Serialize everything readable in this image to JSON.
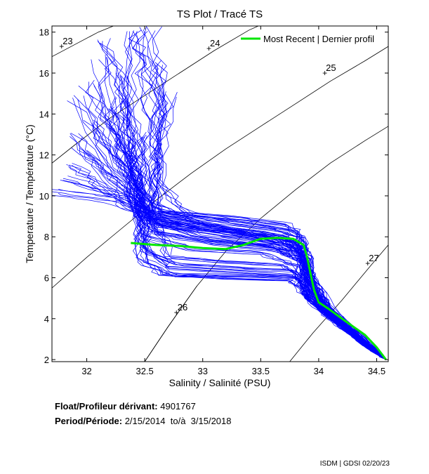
{
  "chart_data": {
    "type": "scatter",
    "title": "TS Plot / Tracé TS",
    "xlabel": "Salinity / Salinité (PSU)",
    "ylabel": "Temperature / Température (°C)",
    "xlim": [
      31.7,
      34.6
    ],
    "ylim": [
      1.9,
      18.3
    ],
    "xticks": [
      32,
      32.5,
      33,
      33.5,
      34,
      34.5
    ],
    "yticks": [
      2,
      4,
      6,
      8,
      10,
      12,
      14,
      16,
      18
    ],
    "grid": false,
    "legend": {
      "position": "top-right",
      "entries": [
        "Most Recent | Dernier profil"
      ]
    },
    "density_contours": [
      {
        "label": "23",
        "label_at": [
          31.78,
          17.3
        ],
        "points": [
          [
            31.7,
            16.8
          ],
          [
            31.9,
            17.4
          ],
          [
            32.1,
            18.0
          ],
          [
            32.23,
            18.3
          ]
        ]
      },
      {
        "label": "24",
        "label_at": [
          33.05,
          17.2
        ],
        "points": [
          [
            31.7,
            11.6
          ],
          [
            31.9,
            12.5
          ],
          [
            32.2,
            13.8
          ],
          [
            32.5,
            14.9
          ],
          [
            32.8,
            16.0
          ],
          [
            33.1,
            17.1
          ],
          [
            33.4,
            18.1
          ],
          [
            33.48,
            18.3
          ]
        ]
      },
      {
        "label": "25",
        "label_at": [
          34.05,
          16.0
        ],
        "points": [
          [
            31.7,
            5.5
          ],
          [
            32.0,
            7.0
          ],
          [
            32.3,
            8.4
          ],
          [
            32.6,
            9.8
          ],
          [
            32.9,
            11.1
          ],
          [
            33.2,
            12.3
          ],
          [
            33.5,
            13.4
          ],
          [
            33.8,
            14.5
          ],
          [
            34.1,
            15.6
          ],
          [
            34.4,
            16.6
          ],
          [
            34.6,
            17.3
          ]
        ]
      },
      {
        "label": "",
        "label_at": null,
        "points": [
          [
            32.5,
            1.9
          ],
          [
            32.7,
            3.6
          ],
          [
            32.95,
            5.6
          ],
          [
            33.2,
            7.3
          ],
          [
            33.5,
            8.9
          ],
          [
            33.8,
            10.3
          ],
          [
            34.1,
            11.6
          ],
          [
            34.4,
            12.7
          ],
          [
            34.6,
            13.4
          ]
        ]
      },
      {
        "label": "26",
        "label_at": [
          32.77,
          4.3
        ],
        "points": [
          [
            32.5,
            1.9
          ],
          [
            32.7,
            3.6
          ],
          [
            32.95,
            5.6
          ]
        ]
      },
      {
        "label": "27",
        "label_at": [
          34.42,
          6.7
        ],
        "points": [
          [
            33.75,
            1.9
          ],
          [
            33.95,
            3.3
          ],
          [
            34.2,
            4.9
          ],
          [
            34.45,
            6.6
          ],
          [
            34.6,
            7.6
          ]
        ]
      }
    ],
    "series": [
      {
        "name": "",
        "color": "#0000ff",
        "role": "historical",
        "profiles": [
          [
            [
              32.42,
              17.9
            ],
            [
              32.35,
              14.5
            ],
            [
              32.4,
              11.0
            ],
            [
              32.5,
              8.9
            ],
            [
              33.0,
              8.3
            ],
            [
              33.5,
              8.0
            ],
            [
              33.85,
              7.6
            ],
            [
              33.9,
              6.2
            ],
            [
              34.0,
              4.6
            ],
            [
              34.2,
              3.5
            ],
            [
              34.58,
              2.0
            ]
          ],
          [
            [
              32.1,
              16.8
            ],
            [
              32.2,
              13.5
            ],
            [
              32.35,
              10.6
            ],
            [
              32.55,
              9.0
            ],
            [
              33.2,
              8.5
            ],
            [
              33.7,
              8.1
            ],
            [
              33.9,
              7.0
            ],
            [
              33.95,
              5.5
            ],
            [
              34.1,
              4.2
            ],
            [
              34.3,
              3.1
            ],
            [
              34.58,
              2.0
            ]
          ],
          [
            [
              31.9,
              13.0
            ],
            [
              32.15,
              11.0
            ],
            [
              32.4,
              9.6
            ],
            [
              32.7,
              8.7
            ],
            [
              33.4,
              8.0
            ],
            [
              33.8,
              7.5
            ],
            [
              33.9,
              6.0
            ],
            [
              34.0,
              4.8
            ],
            [
              34.25,
              3.4
            ],
            [
              34.58,
              2.0
            ]
          ],
          [
            [
              31.95,
              12.2
            ],
            [
              32.3,
              10.5
            ],
            [
              32.55,
              9.2
            ],
            [
              33.0,
              8.6
            ],
            [
              33.6,
              7.9
            ],
            [
              33.85,
              7.2
            ],
            [
              33.92,
              5.6
            ],
            [
              34.05,
              4.4
            ],
            [
              34.35,
              3.0
            ],
            [
              34.58,
              2.0
            ]
          ],
          [
            [
              31.7,
              10.2
            ],
            [
              32.2,
              9.8
            ],
            [
              32.5,
              9.0
            ],
            [
              33.0,
              8.4
            ],
            [
              33.5,
              8.0
            ],
            [
              33.88,
              7.4
            ],
            [
              33.95,
              5.8
            ],
            [
              34.1,
              4.4
            ],
            [
              34.58,
              2.0
            ]
          ],
          [
            [
              31.8,
              10.8
            ],
            [
              32.3,
              10.0
            ],
            [
              32.6,
              8.6
            ],
            [
              33.1,
              8.1
            ],
            [
              33.6,
              7.7
            ],
            [
              33.85,
              7.0
            ],
            [
              33.9,
              5.2
            ],
            [
              34.1,
              4.0
            ],
            [
              34.4,
              2.7
            ],
            [
              34.58,
              2.0
            ]
          ],
          [
            [
              32.55,
              18.2
            ],
            [
              32.6,
              15.0
            ],
            [
              32.55,
              12.0
            ],
            [
              32.6,
              9.5
            ],
            [
              33.0,
              8.6
            ],
            [
              33.5,
              8.2
            ],
            [
              33.8,
              7.8
            ],
            [
              33.9,
              6.4
            ],
            [
              34.0,
              4.9
            ],
            [
              34.3,
              3.3
            ],
            [
              34.58,
              2.0
            ]
          ],
          [
            [
              32.3,
              16.0
            ],
            [
              32.45,
              13.0
            ],
            [
              32.5,
              10.5
            ],
            [
              32.55,
              8.4
            ],
            [
              33.0,
              7.9
            ],
            [
              33.6,
              7.6
            ],
            [
              33.85,
              6.8
            ],
            [
              33.92,
              5.0
            ],
            [
              34.15,
              3.9
            ],
            [
              34.58,
              2.0
            ]
          ],
          [
            [
              32.0,
              15.5
            ],
            [
              32.25,
              12.5
            ],
            [
              32.45,
              10.0
            ],
            [
              32.5,
              8.0
            ],
            [
              32.9,
              7.4
            ],
            [
              33.5,
              7.2
            ],
            [
              33.8,
              6.6
            ],
            [
              33.9,
              5.0
            ],
            [
              34.2,
              3.7
            ],
            [
              34.58,
              2.0
            ]
          ],
          [
            [
              32.7,
              15.0
            ],
            [
              32.6,
              12.0
            ],
            [
              32.55,
              9.8
            ],
            [
              32.5,
              7.5
            ],
            [
              32.7,
              6.5
            ],
            [
              33.3,
              6.3
            ],
            [
              33.8,
              6.1
            ],
            [
              33.9,
              5.0
            ],
            [
              34.1,
              4.0
            ],
            [
              34.58,
              2.0
            ]
          ],
          [
            [
              32.5,
              13.0
            ],
            [
              32.45,
              11.0
            ],
            [
              32.45,
              9.0
            ],
            [
              32.45,
              7.0
            ],
            [
              32.65,
              6.2
            ],
            [
              33.2,
              6.0
            ],
            [
              33.75,
              5.9
            ],
            [
              33.88,
              5.2
            ],
            [
              34.05,
              4.2
            ],
            [
              34.58,
              2.0
            ]
          ],
          [
            [
              32.2,
              14.2
            ],
            [
              32.35,
              11.8
            ],
            [
              32.45,
              9.4
            ],
            [
              32.5,
              7.2
            ],
            [
              32.8,
              6.6
            ],
            [
              33.4,
              6.4
            ],
            [
              33.8,
              6.3
            ],
            [
              33.9,
              5.3
            ],
            [
              34.1,
              4.1
            ],
            [
              34.4,
              2.8
            ],
            [
              34.58,
              2.0
            ]
          ],
          [
            [
              31.9,
              14.8
            ],
            [
              32.2,
              12.0
            ],
            [
              32.4,
              9.8
            ],
            [
              32.6,
              8.6
            ],
            [
              33.2,
              8.3
            ],
            [
              33.7,
              7.9
            ],
            [
              33.88,
              7.0
            ],
            [
              33.93,
              5.6
            ],
            [
              34.1,
              4.3
            ],
            [
              34.58,
              2.0
            ]
          ],
          [
            [
              32.45,
              18.1
            ],
            [
              32.5,
              16.0
            ],
            [
              32.6,
              13.0
            ],
            [
              32.65,
              10.4
            ],
            [
              32.9,
              9.1
            ],
            [
              33.4,
              8.7
            ],
            [
              33.8,
              8.3
            ],
            [
              33.9,
              7.2
            ],
            [
              33.95,
              5.8
            ],
            [
              34.1,
              4.5
            ],
            [
              34.58,
              2.0
            ]
          ],
          [
            [
              32.15,
              17.6
            ],
            [
              32.3,
              15.5
            ],
            [
              32.35,
              13.2
            ],
            [
              32.45,
              11.0
            ],
            [
              32.55,
              9.3
            ],
            [
              33.1,
              8.8
            ],
            [
              33.6,
              8.4
            ],
            [
              33.85,
              8.0
            ],
            [
              33.95,
              6.2
            ],
            [
              34.1,
              4.6
            ],
            [
              34.58,
              2.0
            ]
          ],
          [
            [
              32.25,
              14.8
            ],
            [
              32.35,
              12.2
            ],
            [
              32.45,
              10.2
            ],
            [
              32.55,
              8.8
            ],
            [
              33.0,
              8.0
            ],
            [
              33.5,
              7.6
            ],
            [
              33.82,
              7.3
            ],
            [
              33.9,
              5.8
            ],
            [
              34.05,
              4.5
            ],
            [
              34.58,
              2.0
            ]
          ],
          [
            [
              31.85,
              11.6
            ],
            [
              32.1,
              10.6
            ],
            [
              32.4,
              9.4
            ],
            [
              32.6,
              8.2
            ],
            [
              33.1,
              7.7
            ],
            [
              33.6,
              7.4
            ],
            [
              33.85,
              6.9
            ],
            [
              33.92,
              5.3
            ],
            [
              34.1,
              4.2
            ],
            [
              34.58,
              2.0
            ]
          ],
          [
            [
              32.6,
              16.5
            ],
            [
              32.65,
              14.0
            ],
            [
              32.6,
              11.4
            ],
            [
              32.58,
              9.0
            ],
            [
              32.7,
              7.0
            ],
            [
              33.1,
              6.8
            ],
            [
              33.7,
              6.6
            ],
            [
              33.88,
              5.7
            ],
            [
              34.05,
              4.4
            ],
            [
              34.58,
              2.0
            ]
          ],
          [
            [
              32.35,
              12.6
            ],
            [
              32.4,
              10.8
            ],
            [
              32.45,
              8.6
            ],
            [
              32.5,
              6.8
            ],
            [
              32.75,
              6.1
            ],
            [
              33.3,
              6.1
            ],
            [
              33.8,
              6.0
            ],
            [
              33.9,
              5.1
            ],
            [
              34.1,
              4.0
            ],
            [
              34.58,
              2.0
            ]
          ],
          [
            [
              32.05,
              13.6
            ],
            [
              32.3,
              11.4
            ],
            [
              32.5,
              9.9
            ],
            [
              32.7,
              9.2
            ],
            [
              33.3,
              8.9
            ],
            [
              33.75,
              8.6
            ],
            [
              33.88,
              7.6
            ],
            [
              33.93,
              6.0
            ],
            [
              34.08,
              4.6
            ],
            [
              34.58,
              2.0
            ]
          ]
        ]
      },
      {
        "name": "Most Recent | Dernier profil",
        "color": "#00e600",
        "role": "latest",
        "points": [
          [
            32.38,
            7.7
          ],
          [
            32.6,
            7.6
          ],
          [
            32.8,
            7.55
          ],
          [
            33.0,
            7.45
          ],
          [
            33.2,
            7.4
          ],
          [
            33.35,
            7.6
          ],
          [
            33.5,
            7.9
          ],
          [
            33.65,
            7.95
          ],
          [
            33.78,
            7.9
          ],
          [
            33.87,
            7.6
          ],
          [
            33.9,
            7.0
          ],
          [
            33.93,
            6.2
          ],
          [
            33.96,
            5.4
          ],
          [
            34.0,
            4.8
          ],
          [
            34.08,
            4.5
          ],
          [
            34.25,
            3.8
          ],
          [
            34.4,
            3.2
          ],
          [
            34.5,
            2.6
          ],
          [
            34.58,
            2.0
          ]
        ]
      }
    ]
  },
  "info": {
    "float_label": "Float/Profileur dérivant:",
    "float_value": "4901767",
    "period_label": "Period/Période:",
    "period_value": "2/15/2014  to/à  3/15/2018",
    "footer": "ISDM | GDSI  02/20/23"
  }
}
